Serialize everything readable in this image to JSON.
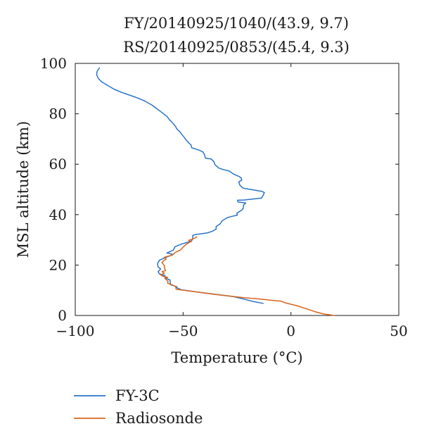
{
  "chart_data": {
    "type": "line",
    "title_lines": [
      "FY/20140925/1040/(43.9, 9.7)",
      "RS/20140925/0853/(45.4, 9.3)"
    ],
    "xlabel": "Temperature (°C)",
    "ylabel": "MSL altitude (km)",
    "xlim": [
      -100,
      50
    ],
    "ylim": [
      0,
      100
    ],
    "xticks": [
      -100,
      -50,
      0,
      50
    ],
    "yticks": [
      0,
      20,
      40,
      60,
      80,
      100
    ],
    "xtick_labels": [
      "−100",
      "−50",
      "0",
      "50"
    ],
    "ytick_labels": [
      "0",
      "20",
      "40",
      "60",
      "80",
      "100"
    ],
    "grid": false,
    "legend_position": "below",
    "series": [
      {
        "name": "FY-3C",
        "color": "#2a73c8",
        "points": [
          [
            -12.9,
            4.8
          ],
          [
            -17.7,
            5.6
          ],
          [
            -21.9,
            6.5
          ],
          [
            -26.8,
            7.5
          ],
          [
            -35.2,
            8.4
          ],
          [
            -43.3,
            9.3
          ],
          [
            -50.8,
            10.2
          ],
          [
            -52.9,
            11.0
          ],
          [
            -52.9,
            11.4
          ],
          [
            -55.8,
            12.2
          ],
          [
            -56.1,
            14.1
          ],
          [
            -58.4,
            14.9
          ],
          [
            -58.4,
            15.8
          ],
          [
            -61.0,
            16.5
          ],
          [
            -61.6,
            17.4
          ],
          [
            -60.4,
            18.4
          ],
          [
            -61.6,
            19.3
          ],
          [
            -61.9,
            20.5
          ],
          [
            -61.0,
            21.9
          ],
          [
            -58.7,
            22.8
          ],
          [
            -54.6,
            24.2
          ],
          [
            -57.5,
            24.8
          ],
          [
            -54.6,
            25.9
          ],
          [
            -53.7,
            27.3
          ],
          [
            -50.5,
            28.4
          ],
          [
            -46.1,
            29.5
          ],
          [
            -45.5,
            30.7
          ],
          [
            -45.5,
            31.8
          ],
          [
            -44.3,
            32.1
          ],
          [
            -38.5,
            32.8
          ],
          [
            -36.2,
            33.5
          ],
          [
            -34.7,
            34.3
          ],
          [
            -34.7,
            35.3
          ],
          [
            -32.9,
            36.3
          ],
          [
            -31.8,
            37.6
          ],
          [
            -29.5,
            38.8
          ],
          [
            -28.0,
            39.2
          ],
          [
            -24.8,
            39.8
          ],
          [
            -25.1,
            40.6
          ],
          [
            -22.8,
            41.8
          ],
          [
            -22.2,
            42.4
          ],
          [
            -21.9,
            43.9
          ],
          [
            -21.0,
            44.6
          ],
          [
            -24.5,
            45.0
          ],
          [
            -24.8,
            45.7
          ],
          [
            -21.6,
            45.8
          ],
          [
            -13.6,
            46.6
          ],
          [
            -13.0,
            47.5
          ],
          [
            -12.3,
            48.7
          ],
          [
            -13.3,
            49.2
          ],
          [
            -18.0,
            49.9
          ],
          [
            -22.2,
            50.5
          ],
          [
            -23.7,
            51.7
          ],
          [
            -24.2,
            53.0
          ],
          [
            -22.8,
            53.7
          ],
          [
            -23.1,
            54.6
          ],
          [
            -24.2,
            55.2
          ],
          [
            -26.8,
            56.2
          ],
          [
            -28.6,
            57.3
          ],
          [
            -31.5,
            57.9
          ],
          [
            -33.5,
            58.5
          ],
          [
            -35.2,
            59.8
          ],
          [
            -35.8,
            61.1
          ],
          [
            -37.0,
            62.1
          ],
          [
            -39.6,
            62.4
          ],
          [
            -40.2,
            64.0
          ],
          [
            -40.8,
            64.9
          ],
          [
            -42.6,
            65.6
          ],
          [
            -43.7,
            65.9
          ],
          [
            -46.0,
            66.5
          ],
          [
            -46.3,
            67.6
          ],
          [
            -47.4,
            68.5
          ],
          [
            -48.6,
            69.6
          ],
          [
            -49.4,
            70.6
          ],
          [
            -50.5,
            71.7
          ],
          [
            -51.4,
            72.8
          ],
          [
            -52.9,
            74.0
          ],
          [
            -53.5,
            75.0
          ],
          [
            -55.2,
            76.7
          ],
          [
            -56.4,
            77.7
          ],
          [
            -57.5,
            79.0
          ],
          [
            -59.8,
            80.5
          ],
          [
            -62.2,
            82.0
          ],
          [
            -64.5,
            83.5
          ],
          [
            -67.4,
            84.9
          ],
          [
            -70.3,
            86.0
          ],
          [
            -74.4,
            87.3
          ],
          [
            -78.5,
            88.5
          ],
          [
            -82.1,
            89.8
          ],
          [
            -84.9,
            91.2
          ],
          [
            -87.8,
            92.7
          ],
          [
            -89.3,
            94.0
          ],
          [
            -90.1,
            95.5
          ],
          [
            -89.9,
            96.8
          ],
          [
            -88.8,
            98.2
          ]
        ]
      },
      {
        "name": "Radiosonde",
        "color": "#d8641c",
        "points": [
          [
            20.2,
            0.0
          ],
          [
            15.2,
            0.6
          ],
          [
            11.1,
            1.5
          ],
          [
            7.0,
            2.7
          ],
          [
            2.6,
            3.9
          ],
          [
            -2.6,
            5.0
          ],
          [
            -4.7,
            5.7
          ],
          [
            -7.6,
            5.9
          ],
          [
            -14.0,
            6.5
          ],
          [
            -21.3,
            7.0
          ],
          [
            -26.5,
            7.5
          ],
          [
            -35.8,
            8.4
          ],
          [
            -43.3,
            9.3
          ],
          [
            -53.2,
            10.4
          ],
          [
            -53.5,
            11.5
          ],
          [
            -55.2,
            12.2
          ],
          [
            -57.2,
            12.8
          ],
          [
            -57.0,
            13.6
          ],
          [
            -57.8,
            14.2
          ],
          [
            -58.4,
            14.7
          ],
          [
            -57.2,
            15.1
          ],
          [
            -59.5,
            15.6
          ],
          [
            -60.4,
            16.1
          ],
          [
            -58.7,
            16.8
          ],
          [
            -59.8,
            17.4
          ],
          [
            -58.1,
            17.8
          ],
          [
            -58.7,
            18.9
          ],
          [
            -58.7,
            19.8
          ],
          [
            -59.8,
            21.0
          ],
          [
            -59.0,
            21.7
          ],
          [
            -57.8,
            22.4
          ],
          [
            -58.7,
            23.1
          ],
          [
            -54.9,
            24.0
          ],
          [
            -53.7,
            25.0
          ],
          [
            -51.4,
            25.9
          ],
          [
            -50.5,
            26.6
          ],
          [
            -49.7,
            27.4
          ],
          [
            -48.9,
            28.0
          ],
          [
            -48.0,
            28.6
          ],
          [
            -46.3,
            29.3
          ],
          [
            -47.4,
            29.8
          ],
          [
            -44.9,
            30.5
          ],
          [
            -43.7,
            31.2
          ]
        ]
      }
    ]
  }
}
